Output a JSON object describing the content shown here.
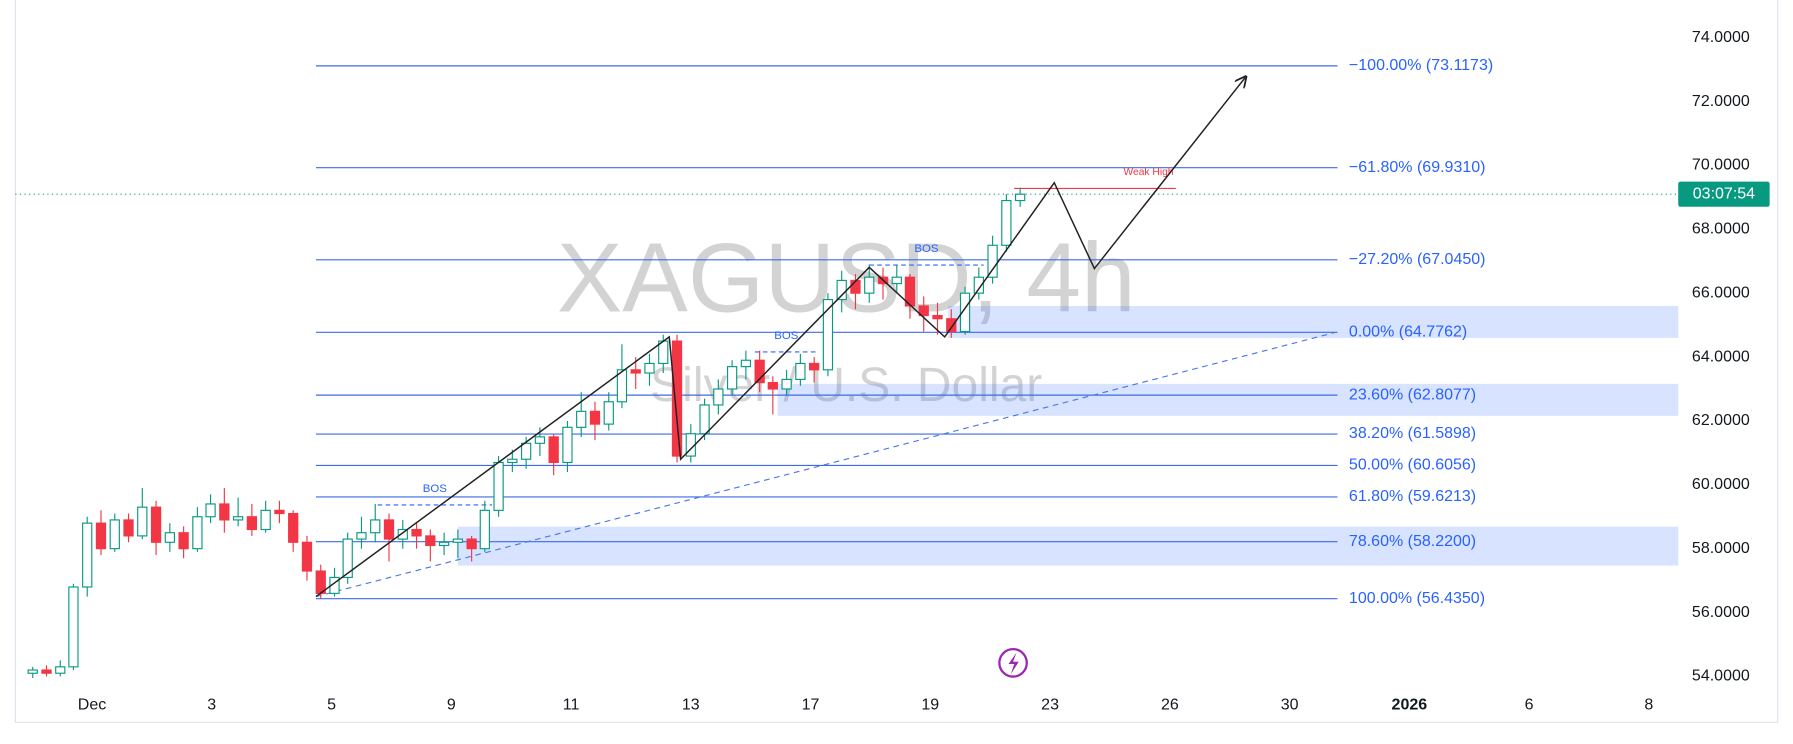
{
  "chart_data": {
    "type": "candlestick",
    "title": "XAGUSD, 4h",
    "subtitle": "Silver / U.S. Dollar",
    "timer": "03:07:54",
    "up_color": "#089981",
    "down_color": "#f23645",
    "xlim": [
      -1.28,
      26.49
    ],
    "ylim": [
      53.53,
      75.18
    ],
    "xticks": [
      {
        "value": 0,
        "label": "Dec"
      },
      {
        "value": 2,
        "label": "3"
      },
      {
        "value": 4,
        "label": "5"
      },
      {
        "value": 6,
        "label": "9"
      },
      {
        "value": 8,
        "label": "11"
      },
      {
        "value": 10,
        "label": "13"
      },
      {
        "value": 12,
        "label": "17"
      },
      {
        "value": 14,
        "label": "19"
      },
      {
        "value": 16,
        "label": "23"
      },
      {
        "value": 18,
        "label": "26"
      },
      {
        "value": 20,
        "label": "30"
      },
      {
        "value": 22,
        "label": "2026"
      },
      {
        "value": 24,
        "label": "6"
      },
      {
        "value": 26,
        "label": "8"
      }
    ],
    "yticks": [
      {
        "value": 54,
        "label": "54.0000"
      },
      {
        "value": 56,
        "label": "56.0000"
      },
      {
        "value": 58,
        "label": "58.0000"
      },
      {
        "value": 60,
        "label": "60.0000"
      },
      {
        "value": 62,
        "label": "62.0000"
      },
      {
        "value": 64,
        "label": "64.0000"
      },
      {
        "value": 66,
        "label": "66.0000"
      },
      {
        "value": 68,
        "label": "68.0000"
      },
      {
        "value": 70,
        "label": "70.0000"
      },
      {
        "value": 72,
        "label": "72.0000"
      },
      {
        "value": 74,
        "label": "74.0000"
      }
    ],
    "candles": [
      [
        -0.99,
        54.1,
        54.3,
        53.95,
        54.2
      ],
      [
        -0.76,
        54.2,
        54.35,
        54.0,
        54.1
      ],
      [
        -0.53,
        54.1,
        54.5,
        54.0,
        54.3
      ],
      [
        -0.31,
        54.3,
        56.9,
        54.2,
        56.8
      ],
      [
        -0.08,
        56.8,
        59.0,
        56.5,
        58.8
      ],
      [
        0.15,
        58.8,
        59.2,
        57.8,
        58.0
      ],
      [
        0.38,
        58.0,
        59.1,
        57.9,
        58.9
      ],
      [
        0.61,
        58.9,
        59.1,
        58.2,
        58.4
      ],
      [
        0.84,
        58.4,
        59.9,
        58.3,
        59.3
      ],
      [
        1.07,
        59.3,
        59.5,
        57.8,
        58.2
      ],
      [
        1.3,
        58.2,
        58.8,
        57.9,
        58.5
      ],
      [
        1.53,
        58.5,
        58.7,
        57.7,
        58.0
      ],
      [
        1.76,
        58.0,
        59.3,
        57.9,
        59.0
      ],
      [
        1.98,
        59.0,
        59.7,
        58.8,
        59.4
      ],
      [
        2.21,
        59.4,
        59.9,
        58.5,
        58.9
      ],
      [
        2.44,
        58.9,
        59.6,
        58.7,
        59.0
      ],
      [
        2.67,
        59.0,
        59.4,
        58.4,
        58.6
      ],
      [
        2.9,
        58.6,
        59.5,
        58.5,
        59.2
      ],
      [
        3.13,
        59.2,
        59.5,
        58.8,
        59.1
      ],
      [
        3.36,
        59.1,
        59.2,
        57.9,
        58.2
      ],
      [
        3.59,
        58.2,
        58.4,
        57.0,
        57.3
      ],
      [
        3.82,
        57.3,
        57.5,
        56.43,
        56.6
      ],
      [
        4.05,
        56.6,
        57.4,
        56.5,
        57.1
      ],
      [
        4.27,
        57.1,
        58.5,
        56.9,
        58.3
      ],
      [
        4.5,
        58.3,
        59.0,
        58.0,
        58.5
      ],
      [
        4.73,
        58.5,
        59.4,
        58.2,
        58.9
      ],
      [
        4.96,
        58.9,
        59.1,
        57.6,
        58.3
      ],
      [
        5.19,
        58.3,
        58.9,
        58.0,
        58.6
      ],
      [
        5.42,
        58.6,
        58.8,
        58.0,
        58.4
      ],
      [
        5.65,
        58.4,
        58.6,
        57.6,
        58.1
      ],
      [
        5.88,
        58.1,
        58.5,
        57.8,
        58.2
      ],
      [
        6.11,
        58.2,
        58.6,
        57.7,
        58.3
      ],
      [
        6.34,
        58.3,
        58.4,
        57.6,
        58.0
      ],
      [
        6.56,
        58.0,
        59.5,
        57.9,
        59.2
      ],
      [
        6.79,
        59.2,
        60.9,
        59.0,
        60.7
      ],
      [
        7.02,
        60.7,
        61.1,
        60.4,
        60.8
      ],
      [
        7.25,
        60.8,
        61.5,
        60.5,
        61.3
      ],
      [
        7.48,
        61.3,
        61.8,
        60.9,
        61.5
      ],
      [
        7.71,
        61.5,
        61.6,
        60.3,
        60.7
      ],
      [
        7.94,
        60.7,
        62.0,
        60.4,
        61.8
      ],
      [
        8.17,
        61.8,
        62.9,
        61.5,
        62.3
      ],
      [
        8.4,
        62.3,
        62.6,
        61.4,
        61.9
      ],
      [
        8.63,
        61.9,
        62.9,
        61.7,
        62.6
      ],
      [
        8.85,
        62.6,
        64.4,
        62.4,
        63.6
      ],
      [
        9.08,
        63.6,
        64.0,
        63.0,
        63.5
      ],
      [
        9.31,
        63.5,
        64.1,
        63.1,
        63.8
      ],
      [
        9.54,
        63.8,
        64.7,
        63.5,
        64.5
      ],
      [
        9.77,
        64.5,
        64.7,
        60.7,
        60.9
      ],
      [
        10.0,
        60.9,
        61.9,
        60.7,
        61.6
      ],
      [
        10.23,
        61.6,
        62.7,
        61.4,
        62.5
      ],
      [
        10.46,
        62.5,
        63.3,
        62.2,
        63.0
      ],
      [
        10.69,
        63.0,
        63.9,
        62.8,
        63.7
      ],
      [
        10.92,
        63.7,
        64.2,
        63.3,
        63.9
      ],
      [
        11.15,
        63.9,
        64.2,
        62.9,
        63.2
      ],
      [
        11.37,
        63.2,
        63.4,
        62.2,
        63.0
      ],
      [
        11.6,
        63.0,
        63.6,
        62.8,
        63.3
      ],
      [
        11.83,
        63.3,
        64.1,
        63.1,
        63.8
      ],
      [
        12.06,
        63.8,
        64.0,
        63.2,
        63.6
      ],
      [
        12.29,
        63.6,
        66.0,
        63.4,
        65.8
      ],
      [
        12.52,
        65.8,
        66.7,
        65.4,
        66.4
      ],
      [
        12.75,
        66.4,
        66.6,
        65.5,
        66.0
      ],
      [
        12.98,
        66.0,
        66.9,
        65.7,
        66.5
      ],
      [
        13.21,
        66.5,
        66.8,
        65.8,
        66.3
      ],
      [
        13.44,
        66.3,
        66.9,
        66.0,
        66.5
      ],
      [
        13.66,
        66.5,
        66.6,
        65.2,
        65.6
      ],
      [
        13.89,
        65.6,
        65.9,
        64.8,
        65.3
      ],
      [
        14.12,
        65.3,
        65.7,
        64.7,
        65.2
      ],
      [
        14.35,
        65.2,
        65.5,
        64.6,
        64.8
      ],
      [
        14.58,
        64.8,
        66.2,
        64.7,
        66.0
      ],
      [
        14.81,
        66.0,
        66.8,
        65.8,
        66.5
      ],
      [
        15.04,
        66.5,
        67.8,
        66.3,
        67.5
      ],
      [
        15.27,
        67.5,
        69.1,
        67.3,
        68.9
      ],
      [
        15.5,
        68.9,
        69.3,
        68.7,
        69.1
      ]
    ],
    "fib_x": [
      3.74,
      20.8
    ],
    "fib_levels": [
      {
        "value": 73.1173,
        "label": "−100.00% (73.1173)"
      },
      {
        "value": 69.931,
        "label": "−61.80% (69.9310)"
      },
      {
        "value": 67.045,
        "label": "−27.20% (67.0450)"
      },
      {
        "value": 64.7762,
        "label": "0.00% (64.7762)"
      },
      {
        "value": 62.8077,
        "label": "23.60% (62.8077)"
      },
      {
        "value": 61.5898,
        "label": "38.20% (61.5898)"
      },
      {
        "value": 60.6056,
        "label": "50.00% (60.6056)"
      },
      {
        "value": 59.6213,
        "label": "61.80% (59.6213)"
      },
      {
        "value": 58.22,
        "label": "78.60% (58.2200)"
      },
      {
        "value": 56.435,
        "label": "100.00% (56.4350)"
      }
    ],
    "zones": [
      {
        "x": 14.3,
        "top": 65.6,
        "bottom": 64.6
      },
      {
        "x": 11.45,
        "top": 63.16,
        "bottom": 62.16
      },
      {
        "x": 6.11,
        "top": 58.69,
        "bottom": 57.47
      }
    ],
    "trend_line": {
      "x": [
        3.74,
        20.76
      ],
      "y": [
        56.5,
        64.77
      ]
    },
    "projection": {
      "x": [
        3.74,
        9.64,
        9.83,
        12.98,
        14.24,
        16.07,
        16.74,
        19.27
      ],
      "y": [
        56.5,
        64.63,
        60.8,
        66.81,
        64.63,
        69.46,
        66.77,
        72.78
      ]
    },
    "weak_high": {
      "label": "Weak High",
      "value": 69.28,
      "x": [
        15.4,
        18.1
      ]
    },
    "bos": [
      {
        "label": "BOS",
        "value": 59.37,
        "x": [
          4.77,
          6.68
        ]
      },
      {
        "label": "BOS",
        "value": 64.16,
        "x": [
          11.07,
          12.12
        ]
      },
      {
        "label": "BOS",
        "value": 66.88,
        "x": [
          12.98,
          14.89
        ]
      }
    ]
  }
}
